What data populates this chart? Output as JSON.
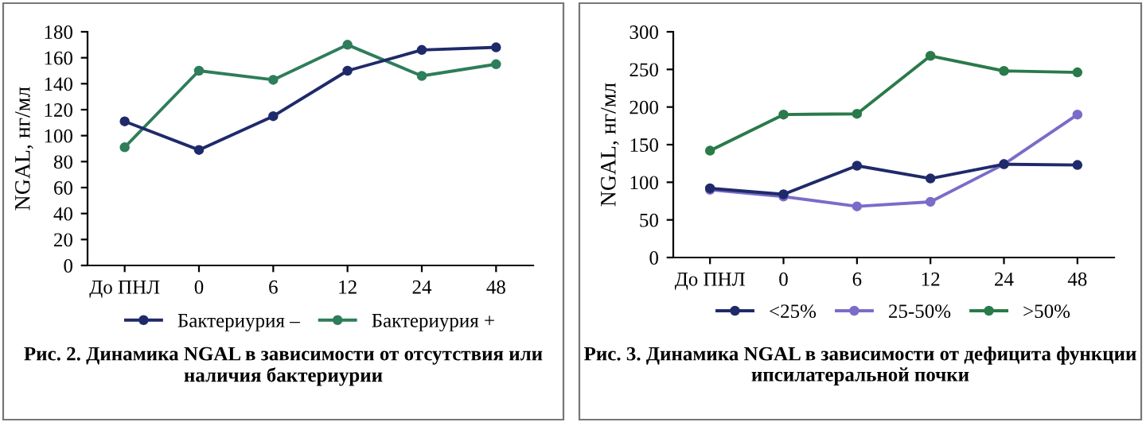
{
  "chart_data": [
    {
      "type": "line",
      "title": "Рис. 2. Динамика NGAL в зависимости от отсутствия или наличия бактериурии",
      "ylabel": "NGAL, нг/мл",
      "categories": [
        "До ПНЛ",
        "0",
        "6",
        "12",
        "24",
        "48"
      ],
      "ylim": [
        0,
        180
      ],
      "yticks": [
        0,
        20,
        40,
        60,
        80,
        100,
        120,
        140,
        160,
        180
      ],
      "grid": false,
      "legend": "bottom",
      "marker": "circle",
      "line_style": "solid",
      "series": [
        {
          "name": "Бактериурия –",
          "color": "#1f2a6b",
          "values": [
            111,
            89,
            115,
            150,
            166,
            168
          ]
        },
        {
          "name": "Бактериурия +",
          "color": "#2e7d5b",
          "values": [
            91,
            150,
            143,
            170,
            146,
            155
          ]
        }
      ]
    },
    {
      "type": "line",
      "title": "Рис. 3. Динамика NGAL в зависимости от дефицита функции ипсилатеральной почки",
      "ylabel": "NGAL, нг/мл",
      "categories": [
        "До ПНЛ",
        "0",
        "6",
        "12",
        "24",
        "48"
      ],
      "ylim": [
        0,
        300
      ],
      "yticks": [
        0,
        50,
        100,
        150,
        200,
        250,
        300
      ],
      "grid": false,
      "legend": "bottom",
      "marker": "circle",
      "line_style": "solid",
      "series": [
        {
          "name": "<25%",
          "color": "#1f2a6b",
          "values": [
            92,
            84,
            122,
            105,
            124,
            123
          ]
        },
        {
          "name": "25-50%",
          "color": "#7a6cc8",
          "values": [
            90,
            81,
            68,
            74,
            124,
            190
          ]
        },
        {
          "name": ">50%",
          "color": "#2a7a4a",
          "values": [
            142,
            190,
            191,
            268,
            248,
            246
          ]
        }
      ]
    }
  ]
}
